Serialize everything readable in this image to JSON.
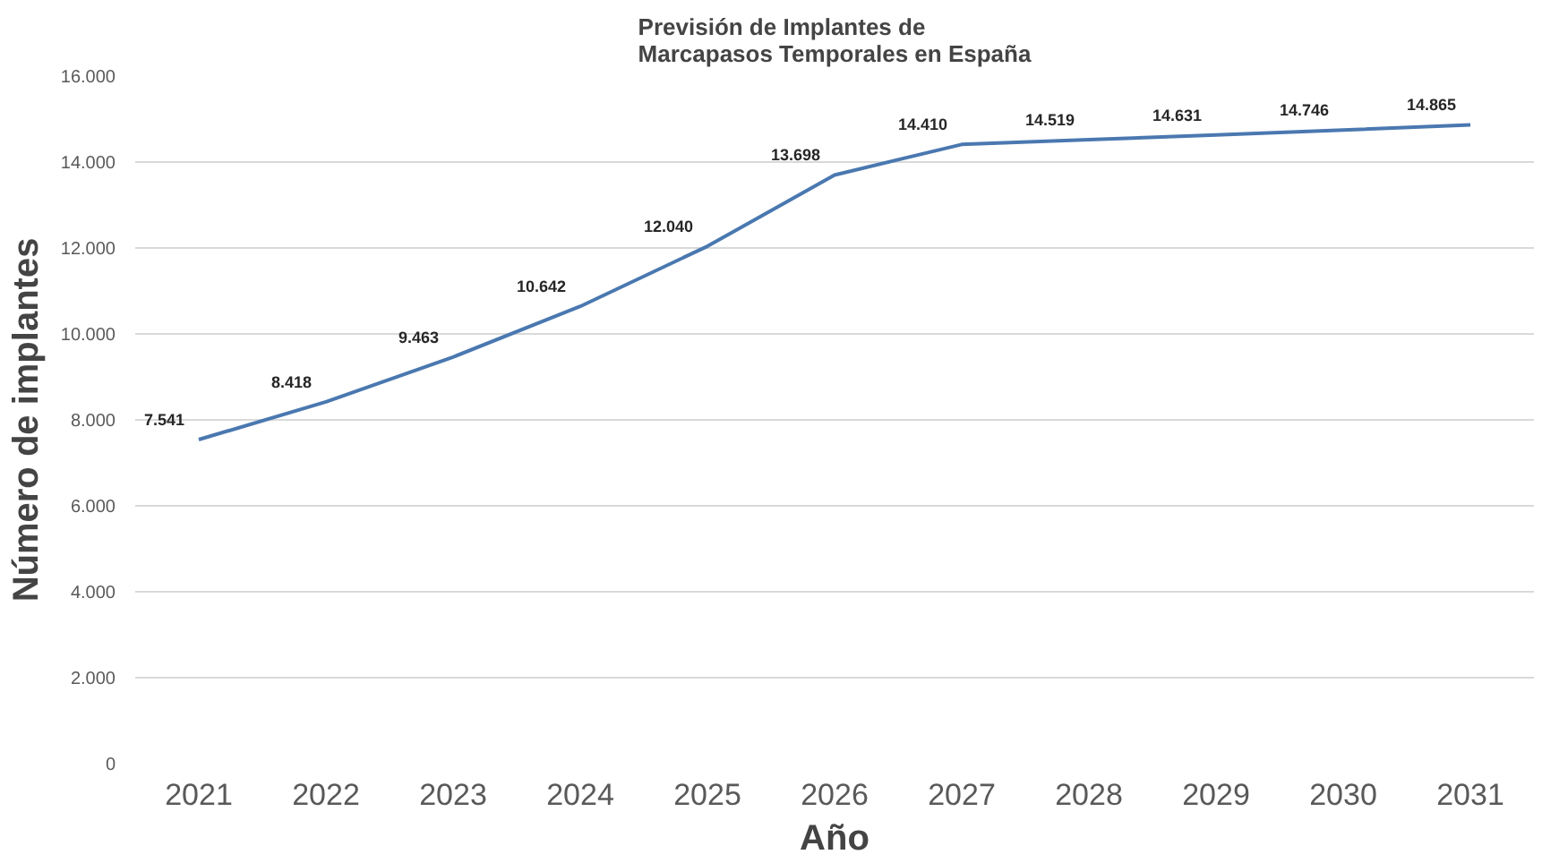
{
  "chart_data": {
    "type": "line",
    "title": "Previsión de Implantes de\nMarcapasos Temporales en España",
    "xlabel": "Año",
    "ylabel": "Número de implantes",
    "categories": [
      "2021",
      "2022",
      "2023",
      "2024",
      "2025",
      "2026",
      "2027",
      "2028",
      "2029",
      "2030",
      "2031"
    ],
    "series": [
      {
        "color": "#4a78b0",
        "values": [
          7541,
          8418,
          9463,
          10642,
          12040,
          13698,
          14410,
          14519,
          14631,
          14746,
          14865
        ],
        "value_labels": [
          "7.541",
          "8.418",
          "9.463",
          "10.642",
          "12.040",
          "13.698",
          "14.410",
          "14.519",
          "14.631",
          "14.746",
          "14.865"
        ]
      }
    ],
    "ylim": [
      0,
      16000
    ],
    "yticks": [
      {
        "value": 0,
        "label": "0"
      },
      {
        "value": 2000,
        "label": "2.000"
      },
      {
        "value": 4000,
        "label": "4.000"
      },
      {
        "value": 6000,
        "label": "6.000"
      },
      {
        "value": 8000,
        "label": "8.000"
      },
      {
        "value": 10000,
        "label": "10.000"
      },
      {
        "value": 12000,
        "label": "12.000"
      },
      {
        "value": 14000,
        "label": "14.000"
      },
      {
        "value": 16000,
        "label": "16.000"
      }
    ],
    "grid": "y",
    "marker": "none",
    "line_style": "solid"
  }
}
